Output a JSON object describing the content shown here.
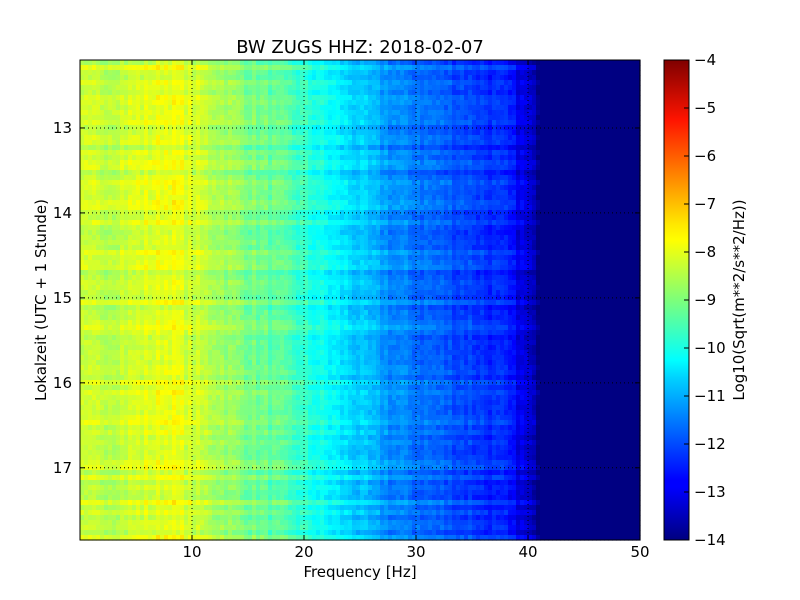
{
  "chart_data": {
    "type": "heatmap",
    "title": "BW ZUGS HHZ: 2018-02-07",
    "xlabel": "Frequency [Hz]",
    "ylabel": "Lokalzeit (UTC + 1 Stunde)",
    "xlim": [
      0,
      50
    ],
    "ylim": [
      12.2,
      17.85
    ],
    "y_inverted": true,
    "x_ticks": [
      "10",
      "20",
      "30",
      "40",
      "50"
    ],
    "y_ticks": [
      "13",
      "14",
      "15",
      "16",
      "17"
    ],
    "grid": true,
    "grid_style": "dotted",
    "colormap": "jet",
    "colorbar": {
      "label": "Log10(Sqrt(m**2/s**2/Hz))",
      "min": -14,
      "max": -4,
      "ticks": [
        "−4",
        "−5",
        "−6",
        "−7",
        "−8",
        "−9",
        "−10",
        "−11",
        "−12",
        "−13",
        "−14"
      ]
    },
    "frequency_profile": [
      {
        "x": 0,
        "value": -8.4
      },
      {
        "x": 3,
        "value": -8.3
      },
      {
        "x": 6,
        "value": -8.1
      },
      {
        "x": 8,
        "value": -7.9
      },
      {
        "x": 10,
        "value": -8.2
      },
      {
        "x": 12,
        "value": -8.5
      },
      {
        "x": 15,
        "value": -9.0
      },
      {
        "x": 18,
        "value": -9.4
      },
      {
        "x": 20,
        "value": -9.8
      },
      {
        "x": 23,
        "value": -10.4
      },
      {
        "x": 25,
        "value": -10.8
      },
      {
        "x": 28,
        "value": -11.4
      },
      {
        "x": 30,
        "value": -11.6
      },
      {
        "x": 33,
        "value": -11.9
      },
      {
        "x": 35,
        "value": -12.1
      },
      {
        "x": 38,
        "value": -12.5
      },
      {
        "x": 40,
        "value": -13.2
      },
      {
        "x": 41,
        "value": -13.9
      },
      {
        "x": 50,
        "value": -14.0
      }
    ]
  }
}
